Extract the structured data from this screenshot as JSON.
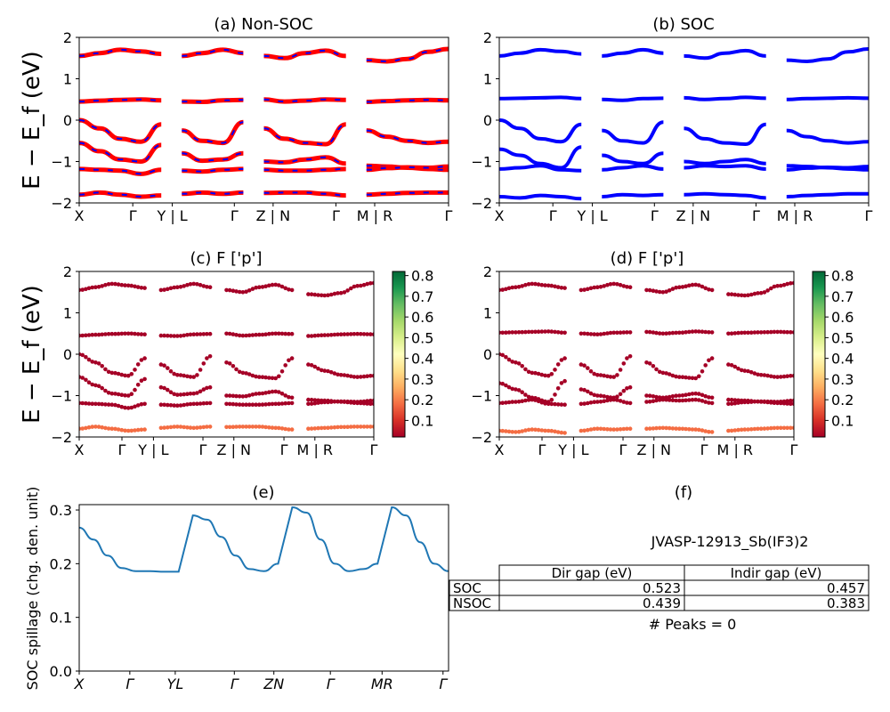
{
  "figure": {
    "band_ylabel": "E − E_f (eV)",
    "spillage_ylabel": "SOC spillage (chg. den. unit)"
  },
  "kpath_labels": [
    "X",
    "Γ",
    "Y | L",
    "Γ",
    "Z | N",
    "Γ",
    "M | R",
    "Γ"
  ],
  "kpath_labels_italic": [
    "X",
    "Γ",
    "YL",
    "Γ",
    "ZN",
    "Γ",
    "MR",
    "Γ"
  ],
  "colors": {
    "band_nonsoc": "#ff0000",
    "band_overlay": "#0000ff",
    "band_soc": "#0000ff",
    "spillage_line": "#1f77b4"
  },
  "colorbar": {
    "ticks": [
      "0.1",
      "0.2",
      "0.3",
      "0.4",
      "0.5",
      "0.6",
      "0.7",
      "0.8"
    ],
    "min": 0.02,
    "max": 0.82,
    "colormap": "RdYlGn"
  },
  "chart_data": [
    {
      "id": "a",
      "type": "line",
      "title": "(a) Non-SOC",
      "xlabel": "",
      "ylabel": "E − E_f (eV)",
      "ylim": [
        -2,
        2
      ],
      "yticks": [
        "−2",
        "−1",
        "0",
        "1",
        "2"
      ],
      "description_of_marks": "approximate band traces across 4 path segments",
      "bands": [
        {
          "values": [
            1.55,
            1.62,
            1.7,
            1.66,
            1.6,
            1.55,
            1.62,
            1.7,
            1.62,
            1.55,
            1.5,
            1.62,
            1.68,
            1.55,
            1.45,
            1.42,
            1.48,
            1.65,
            1.72
          ]
        },
        {
          "values": [
            0.45,
            0.47,
            0.49,
            0.5,
            0.48,
            0.45,
            0.44,
            0.48,
            0.49,
            0.5,
            0.45,
            0.47,
            0.5,
            0.49,
            0.44,
            0.46,
            0.48,
            0.49,
            0.48
          ]
        },
        {
          "values": [
            0.0,
            -0.2,
            -0.45,
            -0.52,
            -0.1,
            -0.25,
            -0.5,
            -0.55,
            -0.05,
            -0.2,
            -0.45,
            -0.55,
            -0.58,
            -0.1,
            -0.25,
            -0.4,
            -0.5,
            -0.55,
            -0.52
          ]
        },
        {
          "values": [
            -0.55,
            -0.75,
            -0.95,
            -1.0,
            -0.6,
            -0.8,
            -0.98,
            -0.95,
            -0.8,
            -1.0,
            -1.02,
            -0.95,
            -0.9,
            -1.05,
            -1.1,
            -1.12,
            -1.15,
            -1.18,
            -1.2
          ]
        },
        {
          "values": [
            -1.18,
            -1.2,
            -1.22,
            -1.3,
            -1.2,
            -1.22,
            -1.24,
            -1.2,
            -1.18,
            -1.2,
            -1.22,
            -1.22,
            -1.2,
            -1.18,
            -1.2,
            -1.16,
            -1.14,
            -1.15,
            -1.12
          ]
        },
        {
          "values": [
            -1.8,
            -1.75,
            -1.8,
            -1.85,
            -1.82,
            -1.78,
            -1.75,
            -1.78,
            -1.75,
            -1.76,
            -1.75,
            -1.75,
            -1.78,
            -1.82,
            -1.8,
            -1.78,
            -1.76,
            -1.75,
            -1.75
          ]
        }
      ]
    },
    {
      "id": "b",
      "type": "line",
      "title": "(b) SOC",
      "xlabel": "",
      "ylabel": "",
      "ylim": [
        -2,
        2
      ],
      "yticks": [
        "−2",
        "−1",
        "0",
        "1",
        "2"
      ],
      "bands": [
        {
          "values": [
            1.55,
            1.62,
            1.7,
            1.66,
            1.6,
            1.55,
            1.62,
            1.7,
            1.62,
            1.55,
            1.5,
            1.62,
            1.68,
            1.55,
            1.45,
            1.42,
            1.48,
            1.65,
            1.72
          ]
        },
        {
          "values": [
            0.52,
            0.53,
            0.54,
            0.55,
            0.52,
            0.5,
            0.48,
            0.52,
            0.53,
            0.54,
            0.5,
            0.52,
            0.55,
            0.53,
            0.5,
            0.52,
            0.53,
            0.54,
            0.53
          ]
        },
        {
          "values": [
            0.0,
            -0.2,
            -0.45,
            -0.52,
            -0.1,
            -0.25,
            -0.5,
            -0.55,
            -0.05,
            -0.2,
            -0.45,
            -0.55,
            -0.58,
            -0.1,
            -0.25,
            -0.4,
            -0.5,
            -0.55,
            -0.52
          ]
        },
        {
          "values": [
            -0.7,
            -0.85,
            -1.05,
            -1.15,
            -0.65,
            -0.85,
            -1.0,
            -1.05,
            -0.8,
            -1.0,
            -1.05,
            -1.0,
            -0.95,
            -1.05,
            -1.1,
            -1.12,
            -1.15,
            -1.18,
            -1.2
          ]
        },
        {
          "values": [
            -1.18,
            -1.15,
            -1.1,
            -1.2,
            -1.22,
            -1.2,
            -1.15,
            -1.1,
            -1.18,
            -1.15,
            -1.1,
            -1.12,
            -1.1,
            -1.18,
            -1.2,
            -1.16,
            -1.14,
            -1.15,
            -1.12
          ]
        },
        {
          "values": [
            -1.85,
            -1.88,
            -1.82,
            -1.85,
            -1.9,
            -1.85,
            -1.8,
            -1.82,
            -1.8,
            -1.8,
            -1.78,
            -1.8,
            -1.82,
            -1.88,
            -1.85,
            -1.82,
            -1.8,
            -1.78,
            -1.78
          ]
        }
      ]
    },
    {
      "id": "c",
      "type": "scatter",
      "title": "(c)  F ['p']",
      "xlabel": "",
      "ylabel": "E − E_f (eV)",
      "ylim": [
        -2,
        2
      ],
      "yticks": [
        "−2",
        "−1",
        "0",
        "1",
        "2"
      ],
      "bands": [
        {
          "weight": 0.03,
          "values": [
            1.55,
            1.62,
            1.7,
            1.66,
            1.6,
            1.55,
            1.62,
            1.7,
            1.62,
            1.55,
            1.5,
            1.62,
            1.68,
            1.55,
            1.45,
            1.42,
            1.48,
            1.65,
            1.72
          ]
        },
        {
          "weight": 0.03,
          "values": [
            0.45,
            0.47,
            0.49,
            0.5,
            0.48,
            0.45,
            0.44,
            0.48,
            0.49,
            0.5,
            0.45,
            0.47,
            0.5,
            0.49,
            0.44,
            0.46,
            0.48,
            0.49,
            0.48
          ]
        },
        {
          "weight": 0.04,
          "values": [
            0.0,
            -0.2,
            -0.45,
            -0.52,
            -0.1,
            -0.25,
            -0.5,
            -0.55,
            -0.05,
            -0.2,
            -0.45,
            -0.55,
            -0.58,
            -0.1,
            -0.25,
            -0.4,
            -0.5,
            -0.55,
            -0.52
          ]
        },
        {
          "weight": 0.05,
          "values": [
            -0.55,
            -0.75,
            -0.95,
            -1.0,
            -0.6,
            -0.8,
            -0.98,
            -0.95,
            -0.8,
            -1.0,
            -1.02,
            -0.95,
            -0.9,
            -1.05,
            -1.1,
            -1.12,
            -1.15,
            -1.18,
            -1.2
          ]
        },
        {
          "weight": 0.06,
          "values": [
            -1.18,
            -1.2,
            -1.22,
            -1.3,
            -1.2,
            -1.22,
            -1.24,
            -1.2,
            -1.18,
            -1.2,
            -1.22,
            -1.22,
            -1.2,
            -1.18,
            -1.2,
            -1.16,
            -1.14,
            -1.15,
            -1.12
          ]
        },
        {
          "weight": 0.2,
          "values": [
            -1.8,
            -1.75,
            -1.8,
            -1.85,
            -1.82,
            -1.78,
            -1.75,
            -1.78,
            -1.75,
            -1.76,
            -1.75,
            -1.75,
            -1.78,
            -1.82,
            -1.8,
            -1.78,
            -1.76,
            -1.75,
            -1.75
          ]
        }
      ]
    },
    {
      "id": "d",
      "type": "scatter",
      "title": "(d) F ['p']",
      "xlabel": "",
      "ylabel": "",
      "ylim": [
        -2,
        2
      ],
      "yticks": [
        "−2",
        "−1",
        "0",
        "1",
        "2"
      ],
      "bands": [
        {
          "weight": 0.03,
          "values": [
            1.55,
            1.62,
            1.7,
            1.66,
            1.6,
            1.55,
            1.62,
            1.7,
            1.62,
            1.55,
            1.5,
            1.62,
            1.68,
            1.55,
            1.45,
            1.42,
            1.48,
            1.65,
            1.72
          ]
        },
        {
          "weight": 0.03,
          "values": [
            0.52,
            0.53,
            0.54,
            0.55,
            0.52,
            0.5,
            0.48,
            0.52,
            0.53,
            0.54,
            0.5,
            0.52,
            0.55,
            0.53,
            0.5,
            0.52,
            0.53,
            0.54,
            0.53
          ]
        },
        {
          "weight": 0.04,
          "values": [
            0.0,
            -0.2,
            -0.45,
            -0.52,
            -0.1,
            -0.25,
            -0.5,
            -0.55,
            -0.05,
            -0.2,
            -0.45,
            -0.55,
            -0.58,
            -0.1,
            -0.25,
            -0.4,
            -0.5,
            -0.55,
            -0.52
          ]
        },
        {
          "weight": 0.05,
          "values": [
            -0.7,
            -0.85,
            -1.05,
            -1.15,
            -0.65,
            -0.85,
            -1.0,
            -1.05,
            -0.8,
            -1.0,
            -1.05,
            -1.0,
            -0.95,
            -1.05,
            -1.1,
            -1.12,
            -1.15,
            -1.18,
            -1.2
          ]
        },
        {
          "weight": 0.06,
          "values": [
            -1.18,
            -1.15,
            -1.1,
            -1.2,
            -1.22,
            -1.2,
            -1.15,
            -1.1,
            -1.18,
            -1.15,
            -1.1,
            -1.12,
            -1.1,
            -1.18,
            -1.2,
            -1.16,
            -1.14,
            -1.15,
            -1.12
          ]
        },
        {
          "weight": 0.2,
          "values": [
            -1.85,
            -1.88,
            -1.82,
            -1.85,
            -1.9,
            -1.85,
            -1.8,
            -1.82,
            -1.8,
            -1.8,
            -1.78,
            -1.8,
            -1.82,
            -1.88,
            -1.85,
            -1.82,
            -1.8,
            -1.78,
            -1.78
          ]
        }
      ]
    },
    {
      "id": "e",
      "type": "line",
      "title": "(e)",
      "xlabel": "",
      "ylabel": "SOC spillage (chg. den. unit)",
      "ylim": [
        0.0,
        0.31
      ],
      "yticks": [
        "0.0",
        "0.1",
        "0.2",
        "0.3"
      ],
      "series": [
        {
          "values": [
            0.267,
            0.245,
            0.215,
            0.192,
            0.186,
            0.186,
            0.185,
            0.185,
            0.29,
            0.282,
            0.25,
            0.215,
            0.19,
            0.186,
            0.2,
            0.305,
            0.295,
            0.245,
            0.2,
            0.186,
            0.19,
            0.2,
            0.305,
            0.29,
            0.24,
            0.2,
            0.186
          ]
        }
      ]
    },
    {
      "id": "f",
      "type": "table",
      "title": "(f)",
      "subtitle": "JVASP-12913_Sb(IF3)2",
      "columns": [
        "Dir gap (eV)",
        "Indir gap (eV)"
      ],
      "rows": [
        {
          "label": "SOC",
          "values": [
            "0.523",
            "0.457"
          ]
        },
        {
          "label": "NSOC",
          "values": [
            "0.439",
            "0.383"
          ]
        }
      ],
      "footer": "# Peaks = 0"
    }
  ]
}
